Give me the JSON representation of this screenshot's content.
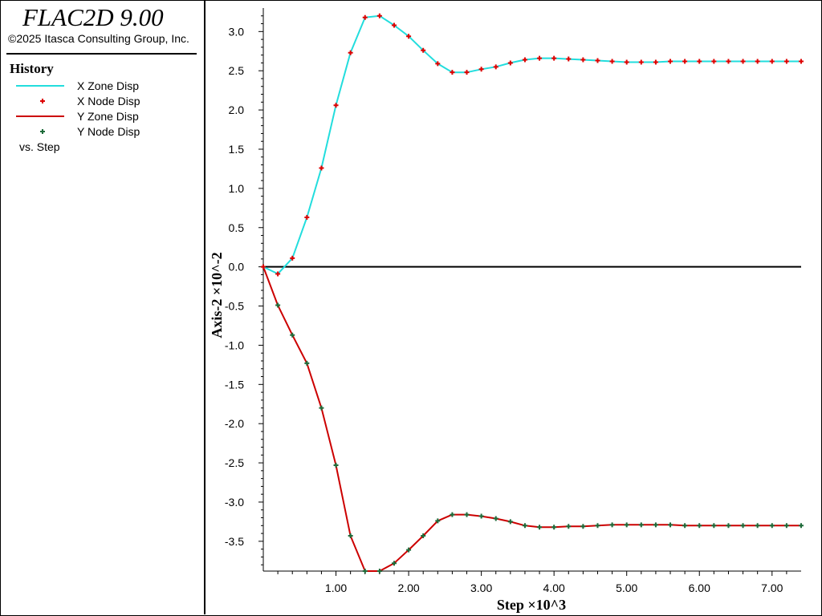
{
  "app": {
    "title": "FLAC2D 9.00",
    "copyright": "©2025 Itasca Consulting Group, Inc."
  },
  "legend": {
    "title": "History",
    "items": [
      {
        "label": "X Zone Disp",
        "style": "line",
        "color": "#22DDDD"
      },
      {
        "label": "X Node Disp",
        "style": "marker",
        "color": "#DD0000"
      },
      {
        "label": "Y Zone Disp",
        "style": "line",
        "color": "#CC0000"
      },
      {
        "label": "Y Node Disp",
        "style": "marker",
        "color": "#1E6B3A"
      }
    ],
    "vs_label": "vs. Step"
  },
  "chart_data": {
    "type": "line",
    "xlabel": "Step ×10^3",
    "ylabel": "Axis-2 ×10^-2",
    "xlim": [
      0,
      7.4
    ],
    "ylim": [
      -3.88,
      3.3
    ],
    "xticks": [
      1.0,
      2.0,
      3.0,
      4.0,
      5.0,
      6.0,
      7.0
    ],
    "xtick_labels": [
      "1.00",
      "2.00",
      "3.00",
      "4.00",
      "5.00",
      "6.00",
      "7.00"
    ],
    "yticks": [
      3.0,
      2.5,
      2.0,
      1.5,
      1.0,
      0.5,
      0.0,
      -0.5,
      -1.0,
      -1.5,
      -2.0,
      -2.5,
      -3.0,
      -3.5
    ],
    "ytick_labels": [
      "3.0",
      "2.5",
      "2.0",
      "1.5",
      "1.0",
      "0.5",
      "0.0",
      "-0.5",
      "-1.0",
      "-1.5",
      "-2.0",
      "-2.5",
      "-3.0",
      "-3.5"
    ],
    "zero_line": true,
    "grid": false,
    "x": [
      0.0,
      0.2,
      0.4,
      0.6,
      0.8,
      1.0,
      1.2,
      1.4,
      1.6,
      1.8,
      2.0,
      2.2,
      2.4,
      2.6,
      2.8,
      3.0,
      3.2,
      3.4,
      3.6,
      3.8,
      4.0,
      4.2,
      4.4,
      4.6,
      4.8,
      5.0,
      5.2,
      5.4,
      5.6,
      5.8,
      6.0,
      6.2,
      6.4,
      6.6,
      6.8,
      7.0,
      7.2,
      7.4
    ],
    "series": [
      {
        "name": "X Zone Disp",
        "style": "line",
        "color": "#22DDDD",
        "values": [
          0.0,
          -0.09,
          0.11,
          0.63,
          1.26,
          2.06,
          2.73,
          3.18,
          3.2,
          3.08,
          2.94,
          2.76,
          2.59,
          2.48,
          2.48,
          2.52,
          2.55,
          2.6,
          2.64,
          2.66,
          2.66,
          2.65,
          2.64,
          2.63,
          2.62,
          2.61,
          2.61,
          2.61,
          2.62,
          2.62,
          2.62,
          2.62,
          2.62,
          2.62,
          2.62,
          2.62,
          2.62,
          2.62
        ]
      },
      {
        "name": "X Node Disp",
        "style": "marker",
        "color": "#DD0000",
        "values": [
          0.0,
          -0.09,
          0.11,
          0.63,
          1.26,
          2.06,
          2.73,
          3.18,
          3.2,
          3.08,
          2.94,
          2.76,
          2.59,
          2.48,
          2.48,
          2.52,
          2.55,
          2.6,
          2.64,
          2.66,
          2.66,
          2.65,
          2.64,
          2.63,
          2.62,
          2.61,
          2.61,
          2.61,
          2.62,
          2.62,
          2.62,
          2.62,
          2.62,
          2.62,
          2.62,
          2.62,
          2.62,
          2.62
        ]
      },
      {
        "name": "Y Zone Disp",
        "style": "line",
        "color": "#CC0000",
        "values": [
          0.0,
          -0.49,
          -0.87,
          -1.23,
          -1.8,
          -2.53,
          -3.43,
          -3.88,
          -3.88,
          -3.78,
          -3.61,
          -3.43,
          -3.24,
          -3.16,
          -3.16,
          -3.18,
          -3.21,
          -3.25,
          -3.3,
          -3.32,
          -3.32,
          -3.31,
          -3.31,
          -3.3,
          -3.29,
          -3.29,
          -3.29,
          -3.29,
          -3.29,
          -3.3,
          -3.3,
          -3.3,
          -3.3,
          -3.3,
          -3.3,
          -3.3,
          -3.3,
          -3.3
        ]
      },
      {
        "name": "Y Node Disp",
        "style": "marker",
        "color": "#1E6B3A",
        "values": [
          0.0,
          -0.49,
          -0.87,
          -1.23,
          -1.8,
          -2.53,
          -3.43,
          -3.88,
          -3.88,
          -3.78,
          -3.61,
          -3.43,
          -3.24,
          -3.16,
          -3.16,
          -3.18,
          -3.21,
          -3.25,
          -3.3,
          -3.32,
          -3.32,
          -3.31,
          -3.31,
          -3.3,
          -3.29,
          -3.29,
          -3.29,
          -3.29,
          -3.29,
          -3.3,
          -3.3,
          -3.3,
          -3.3,
          -3.3,
          -3.3,
          -3.3,
          -3.3,
          -3.3
        ]
      }
    ]
  }
}
